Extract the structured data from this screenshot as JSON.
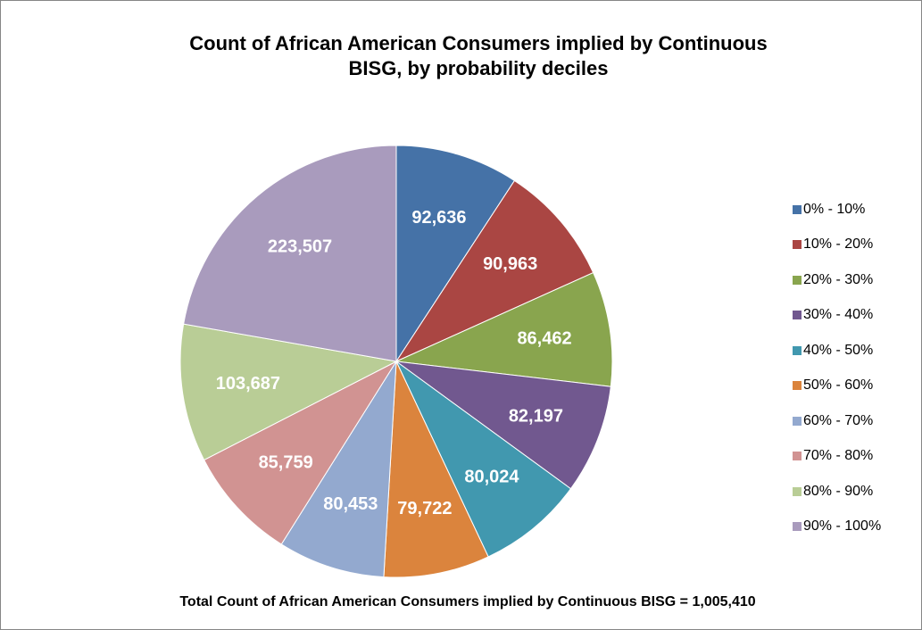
{
  "chart_data": {
    "type": "pie",
    "title_lines": [
      "Count of African American Consumers implied by Continuous",
      "BISG, by probability deciles"
    ],
    "categories": [
      "0% - 10%",
      "10% - 20%",
      "20% - 30%",
      "30% - 40%",
      "40% - 50%",
      "50% - 60%",
      "60% - 70%",
      "70% - 80%",
      "80% - 90%",
      "90% - 100%"
    ],
    "values": [
      92636,
      90963,
      86462,
      82197,
      80024,
      79722,
      80453,
      85759,
      103687,
      223507
    ],
    "data_labels": [
      "92,636",
      "90,963",
      "86,462",
      "82,197",
      "80,024",
      "79,722",
      "80,453",
      "85,759",
      "103,687",
      "223,507"
    ],
    "colors": [
      "#4572A7",
      "#AA4643",
      "#89A54E",
      "#71588F",
      "#4198AF",
      "#DB843D",
      "#93A9CF",
      "#D19392",
      "#B9CD96",
      "#A99BBD"
    ],
    "legend_position": "right",
    "footnote": "Total Count of African American Consumers implied by Continuous BISG = 1,005,410"
  }
}
